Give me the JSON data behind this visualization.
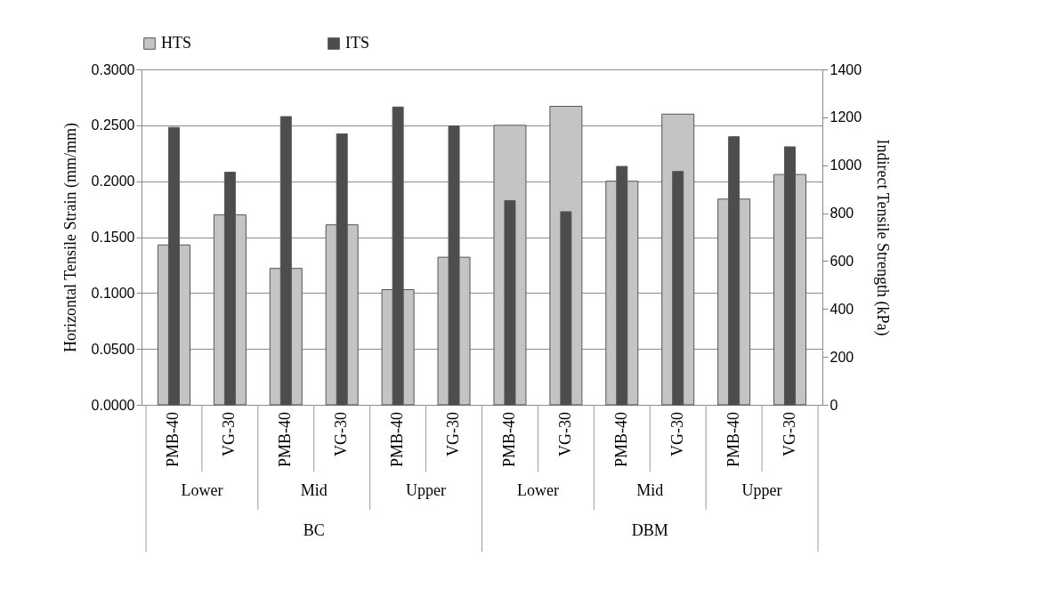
{
  "chart_data": {
    "type": "bar",
    "ylabel": "Horizontal Tensile Strain (mm/mm)",
    "y2label": "Indirect Tensile Strength (kPa)",
    "categories": [
      "PMB-40",
      "VG-30",
      "PMB-40",
      "VG-30",
      "PMB-40",
      "VG-30",
      "PMB-40",
      "VG-30",
      "PMB-40",
      "VG-30",
      "PMB-40",
      "VG-30"
    ],
    "series": [
      {
        "name": "HTS",
        "color": "#c4c4c4",
        "values": [
          0.143,
          0.17,
          0.122,
          0.161,
          0.103,
          0.132,
          0.25,
          0.267,
          0.2,
          0.26,
          0.184,
          0.206
        ]
      },
      {
        "name": "ITS",
        "color": "#4d4d4d",
        "axis": "y2",
        "values": [
          1158,
          971,
          1203,
          1131,
          1243,
          1164,
          852,
          806,
          995,
          974,
          1119,
          1077
        ]
      }
    ],
    "ylim": [
      0,
      0.3
    ],
    "yticks": [
      {
        "value": 0,
        "label": "0.0000"
      },
      {
        "value": 0.05,
        "label": "0.0500"
      },
      {
        "value": 0.1,
        "label": "0.1000"
      },
      {
        "value": 0.15,
        "label": "0.1500"
      },
      {
        "value": 0.2,
        "label": "0.2000"
      },
      {
        "value": 0.25,
        "label": "0.2500"
      },
      {
        "value": 0.3,
        "label": "0.3000"
      }
    ],
    "y2lim": [
      0,
      1400
    ],
    "y2ticks": [
      0,
      200,
      400,
      600,
      800,
      1000,
      1200,
      1400
    ],
    "annotations": [
      "Lower",
      "Mid",
      "Upper",
      "Lower",
      "Mid",
      "Upper",
      "BC",
      "DBM"
    ],
    "grid": "y",
    "legend": "top"
  }
}
